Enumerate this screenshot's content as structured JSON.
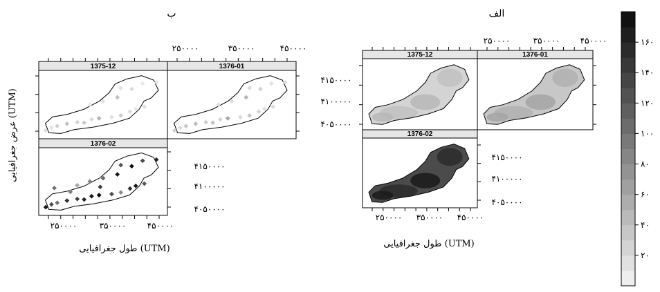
{
  "chart_data": [
    {
      "type": "scatter",
      "figure_label": "ب",
      "panels": [
        {
          "title": "1375-12",
          "points": [
            [
              225000,
              4055000,
              20
            ],
            [
              235000,
              4060000,
              15
            ],
            [
              245000,
              4063000,
              30
            ],
            [
              262000,
              4067000,
              40
            ],
            [
              280000,
              4070000,
              25
            ],
            [
              292000,
              4069000,
              35
            ],
            [
              305000,
              4075000,
              20
            ],
            [
              318000,
              4077000,
              50
            ],
            [
              340000,
              4079000,
              15
            ],
            [
              356000,
              4082000,
              30
            ],
            [
              372000,
              4089000,
              20
            ],
            [
              382000,
              4094000,
              10
            ],
            [
              397000,
              4098000,
              15
            ],
            [
              302000,
              4102000,
              10
            ],
            [
              325000,
              4108000,
              15
            ],
            [
              350000,
              4115000,
              40
            ],
            [
              375000,
              4130000,
              20
            ],
            [
              356000,
              4132000,
              15
            ],
            [
              394000,
              4140000,
              10
            ],
            [
              418000,
              4142000,
              15
            ]
          ]
        },
        {
          "title": "1376-01",
          "points": [
            [
              225000,
              4055000,
              25
            ],
            [
              235000,
              4060000,
              20
            ],
            [
              245000,
              4063000,
              35
            ],
            [
              262000,
              4067000,
              45
            ],
            [
              280000,
              4070000,
              30
            ],
            [
              292000,
              4069000,
              40
            ],
            [
              305000,
              4075000,
              25
            ],
            [
              318000,
              4077000,
              60
            ],
            [
              340000,
              4079000,
              20
            ],
            [
              356000,
              4082000,
              35
            ],
            [
              372000,
              4089000,
              25
            ],
            [
              382000,
              4094000,
              15
            ],
            [
              397000,
              4098000,
              20
            ],
            [
              302000,
              4102000,
              15
            ],
            [
              325000,
              4108000,
              20
            ],
            [
              350000,
              4115000,
              50
            ],
            [
              375000,
              4130000,
              25
            ],
            [
              356000,
              4132000,
              20
            ],
            [
              394000,
              4140000,
              15
            ],
            [
              418000,
              4142000,
              20
            ]
          ]
        },
        {
          "title": "1376-02",
          "points": [
            [
              225000,
              4055000,
              170
            ],
            [
              235000,
              4060000,
              130
            ],
            [
              245000,
              4063000,
              100
            ],
            [
              262000,
              4067000,
              150
            ],
            [
              280000,
              4070000,
              140
            ],
            [
              292000,
              4069000,
              160
            ],
            [
              305000,
              4075000,
              170
            ],
            [
              318000,
              4077000,
              180
            ],
            [
              340000,
              4079000,
              130
            ],
            [
              356000,
              4082000,
              80
            ],
            [
              372000,
              4089000,
              150
            ],
            [
              382000,
              4094000,
              170
            ],
            [
              397000,
              4098000,
              120
            ],
            [
              302000,
              4102000,
              90
            ],
            [
              325000,
              4108000,
              110
            ],
            [
              350000,
              4115000,
              170
            ],
            [
              375000,
              4130000,
              180
            ],
            [
              356000,
              4132000,
              120
            ],
            [
              394000,
              4140000,
              130
            ],
            [
              418000,
              4142000,
              160
            ],
            [
              240000,
              4090000,
              100
            ],
            [
              280000,
              4095000,
              60
            ],
            [
              268000,
              4083000,
              90
            ],
            [
              320000,
              4092000,
              140
            ]
          ]
        }
      ],
      "x_ticks": [
        "۲۵۰۰۰۰",
        "۳۵۰۰۰۰",
        "۴۵۰۰۰۰"
      ],
      "y_ticks": [
        "۴۱۵۰۰۰۰",
        "۴۱۰۰۰۰۰",
        "۴۰۵۰۰۰۰"
      ],
      "xlabel": "طول جغرافیایی (UTM)",
      "ylabel": "عرض جغرافیایی (UTM)"
    },
    {
      "type": "heatmap",
      "figure_label": "الف",
      "panels": [
        {
          "title": "1375-12",
          "mean_value": 25,
          "max_value": 55
        },
        {
          "title": "1376-01",
          "mean_value": 35,
          "max_value": 70
        },
        {
          "title": "1376-02",
          "mean_value": 130,
          "max_value": 180
        }
      ],
      "x_ticks": [
        "۲۵۰۰۰۰",
        "۳۵۰۰۰۰",
        "۴۵۰۰۰۰"
      ],
      "y_ticks": [
        "۴۱۵۰۰۰۰",
        "۴۱۰۰۰۰۰",
        "۴۰۵۰۰۰۰"
      ],
      "xlabel": "طول جغرافیایی (UTM)"
    }
  ],
  "colorbar": {
    "ticks": [
      "۲۰",
      "۴۰",
      "۶۰",
      "۸۰",
      "۱۰۰",
      "۱۲۰",
      "۱۴۰",
      "۱۶۰"
    ],
    "tick_values": [
      20,
      40,
      60,
      80,
      100,
      120,
      140,
      160
    ],
    "range": [
      0,
      180
    ]
  },
  "colors": {
    "low": "#f5f5f5",
    "high": "#0a0a0a"
  }
}
